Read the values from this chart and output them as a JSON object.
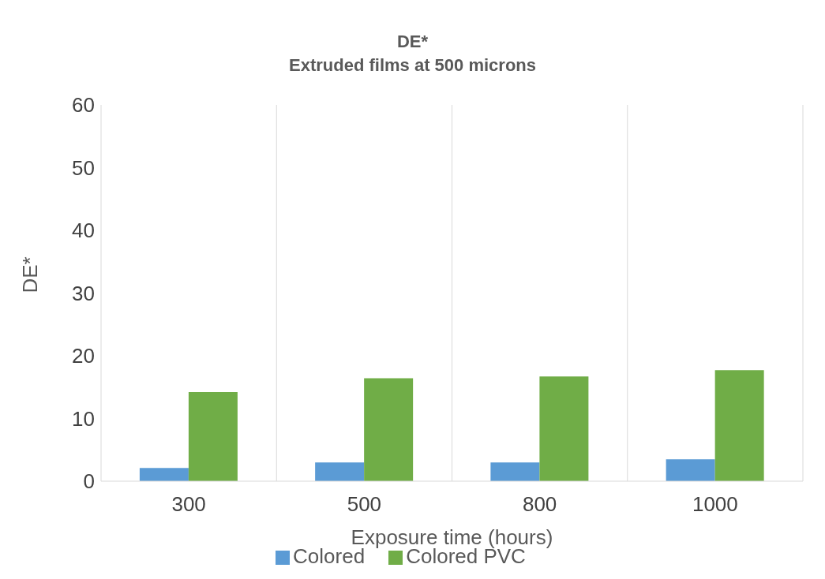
{
  "chart_data": {
    "type": "bar",
    "title": "DE*",
    "subtitle": "Extruded films at 500 microns",
    "xlabel": "Exposure time (hours)",
    "ylabel": "DE*",
    "categories": [
      "300",
      "500",
      "800",
      "1000"
    ],
    "series": [
      {
        "name": "Colored",
        "color": "#5b9bd5",
        "values": [
          2.1,
          3.0,
          3.0,
          3.5
        ]
      },
      {
        "name": "Colored PVC",
        "color": "#70ad47",
        "values": [
          14.2,
          16.4,
          16.7,
          17.7
        ]
      }
    ],
    "ylim": [
      0,
      60
    ],
    "yticks": [
      0,
      10,
      20,
      30,
      40,
      50,
      60
    ],
    "grid": "x",
    "legend": "bottom"
  }
}
